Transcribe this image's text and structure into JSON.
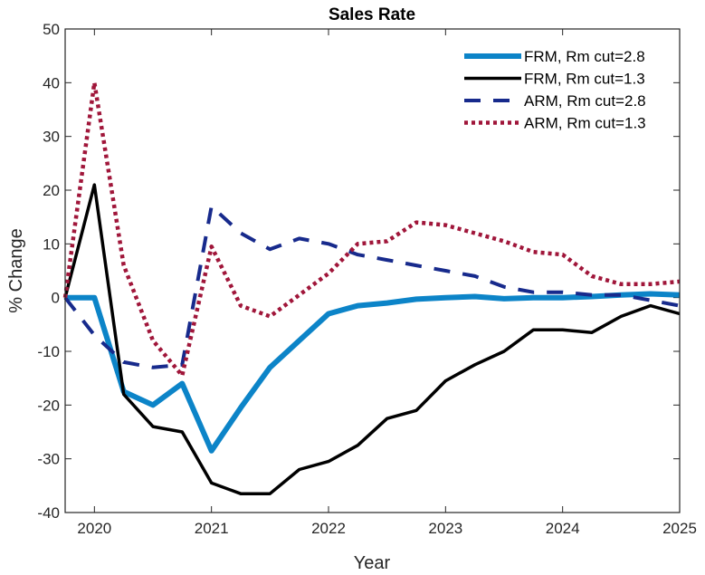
{
  "chart_data": {
    "type": "line",
    "title": "Sales Rate",
    "xlabel": "Year",
    "ylabel": "% Change",
    "xlim": [
      2019.75,
      2025
    ],
    "ylim": [
      -40,
      50
    ],
    "xticks": [
      2020,
      2021,
      2022,
      2023,
      2024,
      2025
    ],
    "yticks": [
      -40,
      -30,
      -20,
      -10,
      0,
      10,
      20,
      30,
      40,
      50
    ],
    "grid": false,
    "legend_position": "top-right",
    "x": [
      2019.75,
      2020,
      2020.25,
      2020.5,
      2020.75,
      2021,
      2021.25,
      2021.5,
      2021.75,
      2022,
      2022.25,
      2022.5,
      2022.75,
      2023,
      2023.25,
      2023.5,
      2023.75,
      2024,
      2024.25,
      2024.5,
      2024.75,
      2025
    ],
    "series": [
      {
        "name": "FRM, Rm cut=2.8",
        "color": "#0c84c8",
        "style": "solid-thick",
        "values": [
          0,
          0,
          -17.5,
          -20,
          -16,
          -28.5,
          -20.5,
          -13,
          -8,
          -3,
          -1.5,
          -1,
          -0.3,
          0,
          0.2,
          -0.2,
          0,
          0,
          0.2,
          0.5,
          0.7,
          0.5
        ]
      },
      {
        "name": "FRM, Rm cut=1.3",
        "color": "#000000",
        "style": "solid",
        "values": [
          0,
          21,
          -18,
          -24,
          -25,
          -34.5,
          -36.5,
          -36.5,
          -32,
          -30.5,
          -27.5,
          -22.5,
          -21,
          -15.5,
          -12.5,
          -10,
          -6,
          -6,
          -6.5,
          -3.5,
          -1.5,
          -3
        ]
      },
      {
        "name": "ARM, Rm cut=2.8",
        "color": "#172a8c",
        "style": "dashed",
        "values": [
          0,
          -7,
          -12,
          -13,
          -12.5,
          17,
          12,
          9,
          11,
          10,
          8,
          7,
          6,
          5,
          4,
          2,
          1,
          1,
          0.5,
          0.5,
          -0.5,
          -1.5
        ]
      },
      {
        "name": "ARM, Rm cut=1.3",
        "color": "#a0163a",
        "style": "dotted",
        "values": [
          0,
          40,
          6,
          -8,
          -14.5,
          9.5,
          -1.5,
          -3.5,
          0.5,
          4.5,
          10,
          10.5,
          14,
          13.5,
          12,
          10.5,
          8.5,
          8,
          4,
          2.5,
          2.5,
          3
        ]
      }
    ]
  }
}
